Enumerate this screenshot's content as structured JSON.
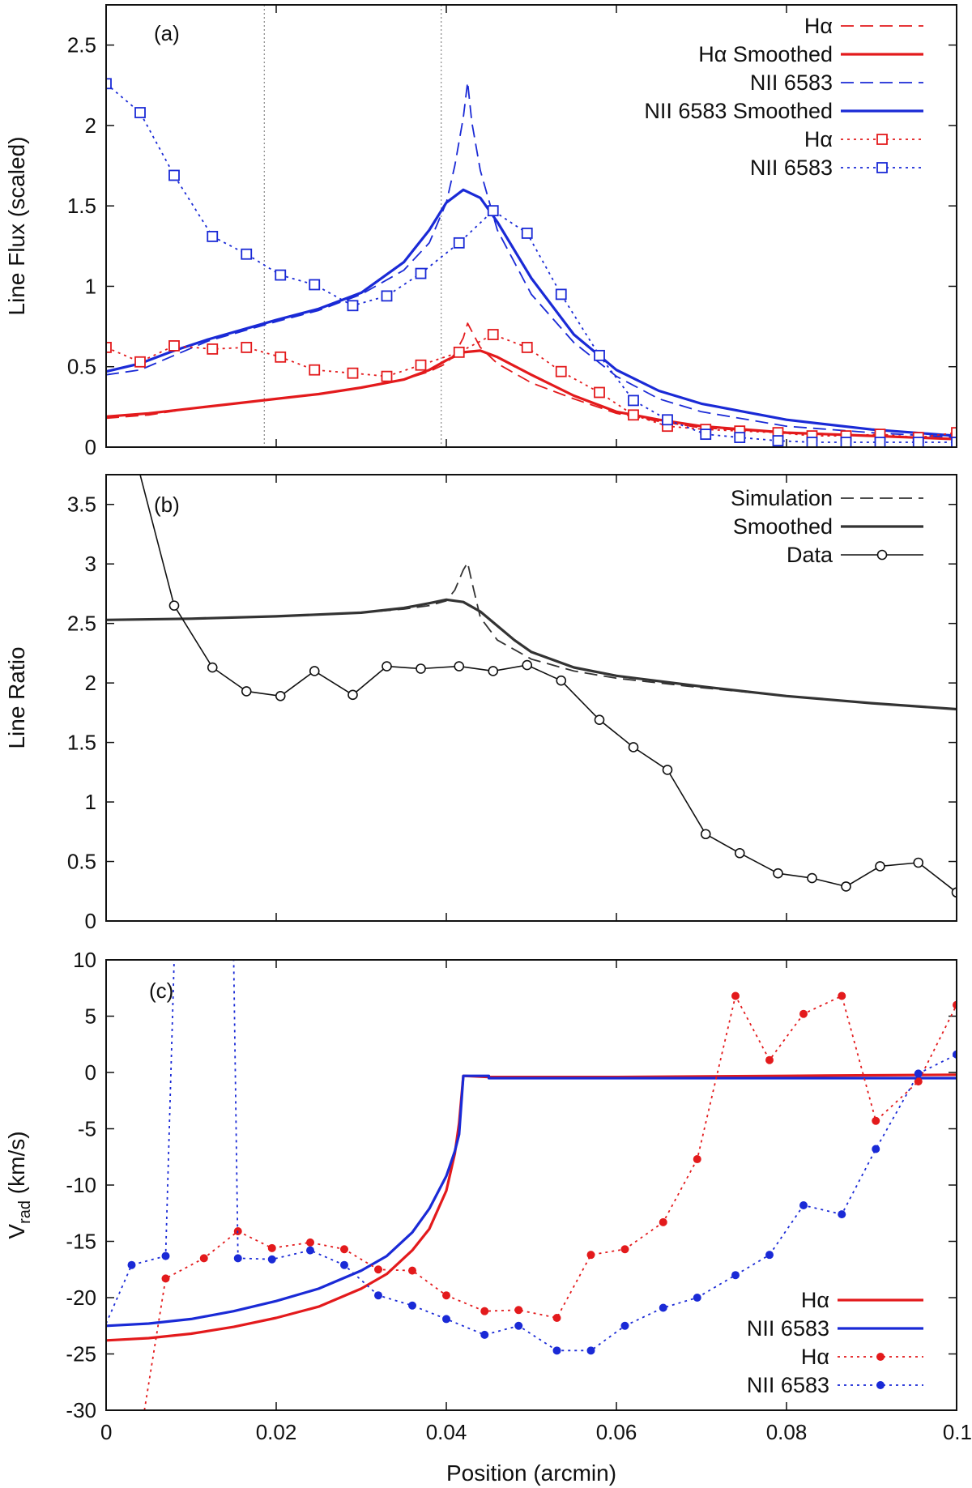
{
  "chart_data": [
    {
      "type": "line",
      "panel_label": "(a)",
      "ylabel": "Line Flux (scaled)",
      "xlim": [
        0,
        0.1
      ],
      "ylim": [
        0,
        2.75
      ],
      "yticks": [
        0,
        0.5,
        1,
        1.5,
        2,
        2.5
      ],
      "ytick_labels": [
        "0",
        "0.5",
        "1",
        "1.5",
        "2",
        "2.5"
      ],
      "vlines": [
        0.0186,
        0.0394
      ],
      "legend_position": "top-right",
      "series": [
        {
          "name": "Hα",
          "color": "#e31a1c",
          "style": "dashed",
          "x": [
            0,
            0.005,
            0.01,
            0.015,
            0.02,
            0.025,
            0.03,
            0.035,
            0.038,
            0.04,
            0.041,
            0.042,
            0.0425,
            0.043,
            0.044,
            0.046,
            0.05,
            0.055,
            0.06,
            0.065,
            0.07,
            0.08,
            0.09,
            0.1
          ],
          "y": [
            0.18,
            0.2,
            0.24,
            0.27,
            0.3,
            0.33,
            0.37,
            0.42,
            0.47,
            0.52,
            0.58,
            0.68,
            0.77,
            0.72,
            0.62,
            0.52,
            0.4,
            0.3,
            0.21,
            0.16,
            0.12,
            0.09,
            0.07,
            0.05
          ]
        },
        {
          "name": "Hα Smoothed",
          "color": "#e31a1c",
          "style": "solid",
          "x": [
            0,
            0.005,
            0.01,
            0.015,
            0.02,
            0.025,
            0.03,
            0.035,
            0.038,
            0.04,
            0.042,
            0.044,
            0.046,
            0.05,
            0.055,
            0.06,
            0.065,
            0.07,
            0.08,
            0.09,
            0.1
          ],
          "y": [
            0.19,
            0.21,
            0.24,
            0.27,
            0.3,
            0.33,
            0.37,
            0.42,
            0.48,
            0.54,
            0.59,
            0.6,
            0.56,
            0.45,
            0.32,
            0.22,
            0.17,
            0.13,
            0.09,
            0.07,
            0.05
          ]
        },
        {
          "name": "NII 6583",
          "color": "#1a2ad6",
          "style": "dashed",
          "x": [
            0,
            0.004,
            0.008,
            0.012,
            0.016,
            0.02,
            0.025,
            0.03,
            0.035,
            0.038,
            0.04,
            0.041,
            0.042,
            0.0425,
            0.043,
            0.044,
            0.046,
            0.05,
            0.055,
            0.06,
            0.065,
            0.07,
            0.08,
            0.09,
            0.1
          ],
          "y": [
            0.45,
            0.48,
            0.57,
            0.66,
            0.72,
            0.78,
            0.85,
            0.95,
            1.1,
            1.27,
            1.52,
            1.75,
            2.05,
            2.27,
            2.02,
            1.72,
            1.35,
            0.95,
            0.65,
            0.44,
            0.3,
            0.22,
            0.13,
            0.09,
            0.06
          ]
        },
        {
          "name": "NII 6583 Smoothed",
          "color": "#1a2ad6",
          "style": "solid",
          "x": [
            0,
            0.004,
            0.008,
            0.012,
            0.016,
            0.02,
            0.025,
            0.03,
            0.035,
            0.038,
            0.04,
            0.042,
            0.044,
            0.046,
            0.05,
            0.055,
            0.06,
            0.065,
            0.07,
            0.08,
            0.09,
            0.1
          ],
          "y": [
            0.47,
            0.52,
            0.6,
            0.67,
            0.73,
            0.79,
            0.86,
            0.96,
            1.15,
            1.35,
            1.52,
            1.6,
            1.55,
            1.4,
            1.05,
            0.7,
            0.48,
            0.35,
            0.27,
            0.17,
            0.11,
            0.07
          ]
        },
        {
          "name": "Hα",
          "color": "#e31a1c",
          "style": "dotted",
          "marker": "square",
          "x": [
            0,
            0.004,
            0.008,
            0.0125,
            0.0165,
            0.0205,
            0.0245,
            0.029,
            0.033,
            0.037,
            0.0415,
            0.0455,
            0.0495,
            0.0535,
            0.058,
            0.062,
            0.066,
            0.0705,
            0.0745,
            0.079,
            0.083,
            0.087,
            0.091,
            0.0955,
            0.1
          ],
          "y": [
            0.62,
            0.53,
            0.63,
            0.61,
            0.62,
            0.56,
            0.48,
            0.46,
            0.44,
            0.51,
            0.59,
            0.7,
            0.62,
            0.47,
            0.34,
            0.2,
            0.13,
            0.11,
            0.1,
            0.09,
            0.07,
            0.07,
            0.08,
            0.06,
            0.09
          ]
        },
        {
          "name": "NII 6583",
          "color": "#1a2ad6",
          "style": "dotted",
          "marker": "square",
          "x": [
            0,
            0.004,
            0.008,
            0.0125,
            0.0165,
            0.0205,
            0.0245,
            0.029,
            0.033,
            0.037,
            0.0415,
            0.0455,
            0.0495,
            0.0535,
            0.058,
            0.062,
            0.066,
            0.0705,
            0.0745,
            0.079,
            0.083,
            0.087,
            0.091,
            0.0955,
            0.1
          ],
          "y": [
            2.26,
            2.08,
            1.69,
            1.31,
            1.2,
            1.07,
            1.01,
            0.88,
            0.94,
            1.08,
            1.27,
            1.47,
            1.33,
            0.95,
            0.57,
            0.29,
            0.17,
            0.08,
            0.06,
            0.04,
            0.03,
            0.03,
            0.03,
            0.03,
            0.03
          ]
        }
      ]
    },
    {
      "type": "line",
      "panel_label": "(b)",
      "ylabel": "Line Ratio",
      "xlim": [
        0,
        0.1
      ],
      "ylim": [
        0,
        3.75
      ],
      "yticks": [
        0,
        0.5,
        1,
        1.5,
        2,
        2.5,
        3,
        3.5
      ],
      "ytick_labels": [
        "0",
        "0.5",
        "1",
        "1.5",
        "2",
        "2.5",
        "3",
        "3.5"
      ],
      "legend_position": "top-right",
      "series": [
        {
          "name": "Simulation",
          "color": "#333333",
          "style": "dashed",
          "x": [
            0,
            0.01,
            0.02,
            0.03,
            0.035,
            0.038,
            0.04,
            0.041,
            0.042,
            0.0425,
            0.043,
            0.044,
            0.046,
            0.05,
            0.055,
            0.06,
            0.07,
            0.08,
            0.09,
            0.1
          ],
          "y": [
            2.53,
            2.54,
            2.56,
            2.59,
            2.62,
            2.65,
            2.69,
            2.78,
            2.95,
            3.01,
            2.85,
            2.55,
            2.36,
            2.2,
            2.1,
            2.04,
            1.96,
            1.89,
            1.83,
            1.78
          ]
        },
        {
          "name": "Smoothed",
          "color": "#333333",
          "style": "solid",
          "x": [
            0,
            0.01,
            0.02,
            0.03,
            0.035,
            0.038,
            0.04,
            0.042,
            0.044,
            0.046,
            0.048,
            0.05,
            0.055,
            0.06,
            0.07,
            0.08,
            0.09,
            0.1
          ],
          "y": [
            2.53,
            2.54,
            2.56,
            2.59,
            2.63,
            2.67,
            2.7,
            2.68,
            2.6,
            2.48,
            2.36,
            2.26,
            2.13,
            2.06,
            1.97,
            1.89,
            1.83,
            1.78
          ]
        },
        {
          "name": "Data",
          "color": "#111111",
          "style": "solid",
          "marker": "circle",
          "x": [
            0.004,
            0.008,
            0.0125,
            0.0165,
            0.0205,
            0.0245,
            0.029,
            0.033,
            0.037,
            0.0415,
            0.0455,
            0.0495,
            0.0535,
            0.058,
            0.062,
            0.066,
            0.0705,
            0.0745,
            0.079,
            0.083,
            0.087,
            0.091,
            0.0955,
            0.1
          ],
          "y": [
            3.75,
            2.65,
            2.13,
            1.93,
            1.89,
            2.1,
            1.9,
            2.14,
            2.12,
            2.14,
            2.1,
            2.15,
            2.02,
            1.69,
            1.46,
            1.27,
            0.73,
            0.57,
            0.4,
            0.36,
            0.29,
            0.46,
            0.49,
            0.24
          ],
          "markers_from_index": 1
        }
      ]
    },
    {
      "type": "line",
      "panel_label": "(c)",
      "ylabel": "V",
      "ylabel_subscript": "rad",
      "ylabel_suffix": " (km/s)",
      "xlabel": "Position (arcmin)",
      "xlim": [
        0,
        0.1
      ],
      "ylim": [
        -30,
        10
      ],
      "yticks": [
        -30,
        -25,
        -20,
        -15,
        -10,
        -5,
        0,
        5,
        10
      ],
      "ytick_labels": [
        "-30",
        "-25",
        "-20",
        "-15",
        "-10",
        "-5",
        "0",
        "5",
        "10"
      ],
      "xticks": [
        0,
        0.02,
        0.04,
        0.06,
        0.08,
        0.1
      ],
      "xtick_labels": [
        "0",
        "0.02",
        "0.04",
        "0.06",
        "0.08",
        "0.1"
      ],
      "legend_position": "bottom-right",
      "series": [
        {
          "name": "Hα",
          "color": "#e31a1c",
          "style": "solid",
          "x": [
            0,
            0.005,
            0.01,
            0.015,
            0.02,
            0.025,
            0.03,
            0.033,
            0.036,
            0.038,
            0.04,
            0.041,
            0.0415,
            0.042,
            0.045,
            0.06,
            0.08,
            0.1
          ],
          "y": [
            -23.8,
            -23.6,
            -23.2,
            -22.6,
            -21.8,
            -20.8,
            -19.2,
            -17.9,
            -15.8,
            -13.9,
            -10.5,
            -7.2,
            -4.5,
            -0.3,
            -0.4,
            -0.4,
            -0.3,
            -0.2
          ]
        },
        {
          "name": "NII 6583",
          "color": "#1a2ad6",
          "style": "solid",
          "x": [
            0,
            0.005,
            0.01,
            0.015,
            0.02,
            0.025,
            0.03,
            0.033,
            0.036,
            0.038,
            0.04,
            0.041,
            0.0415,
            0.042,
            0.045,
            0.045,
            0.06,
            0.08,
            0.1
          ],
          "y": [
            -22.5,
            -22.3,
            -21.9,
            -21.2,
            -20.3,
            -19.2,
            -17.6,
            -16.3,
            -14.2,
            -12.1,
            -9.2,
            -7.0,
            -5.5,
            -0.3,
            -0.3,
            -0.5,
            -0.5,
            -0.5,
            -0.5
          ]
        },
        {
          "name": "Hα",
          "color": "#e31a1c",
          "style": "dotted",
          "marker": "dot",
          "x": [
            0.0045,
            0.007,
            0.0115,
            0.0155,
            0.0195,
            0.024,
            0.028,
            0.032,
            0.036,
            0.04,
            0.0445,
            0.0485,
            0.053,
            0.057,
            0.061,
            0.0655,
            0.0695,
            0.074,
            0.078,
            0.082,
            0.0865,
            0.0905,
            0.0955,
            0.1
          ],
          "y": [
            -30,
            -18.3,
            -16.5,
            -14.1,
            -15.6,
            -15.1,
            -15.7,
            -17.5,
            -17.6,
            -19.8,
            -21.2,
            -21.1,
            -21.8,
            -16.2,
            -15.7,
            -13.3,
            -7.7,
            6.8,
            1.1,
            5.2,
            6.8,
            -4.3,
            -0.8,
            6.0
          ],
          "markers_from_index": 1
        },
        {
          "name": "NII 6583",
          "color": "#1a2ad6",
          "style": "dotted",
          "marker": "dot",
          "x": [
            0,
            0.003,
            0.007,
            0.008,
            0.015,
            0.0155,
            0.0195,
            0.024,
            0.028,
            0.032,
            0.036,
            0.04,
            0.0445,
            0.0485,
            0.053,
            0.057,
            0.061,
            0.0655,
            0.0695,
            0.074,
            0.078,
            0.082,
            0.0865,
            0.0905,
            0.0955,
            0.1
          ],
          "y": [
            -22.3,
            -17.1,
            -16.3,
            10,
            10,
            -16.5,
            -16.6,
            -15.8,
            -17.1,
            -19.8,
            -20.7,
            -21.9,
            -23.3,
            -22.5,
            -24.7,
            -24.7,
            -22.5,
            -20.9,
            -20.0,
            -18.0,
            -16.2,
            -11.8,
            -12.6,
            -6.8,
            -0.1,
            1.6
          ],
          "marker_indices": [
            1,
            2,
            5,
            6,
            7,
            8,
            9,
            10,
            11,
            12,
            13,
            14,
            15,
            16,
            17,
            18,
            19,
            20,
            21,
            22,
            23,
            24,
            25
          ]
        }
      ]
    }
  ]
}
